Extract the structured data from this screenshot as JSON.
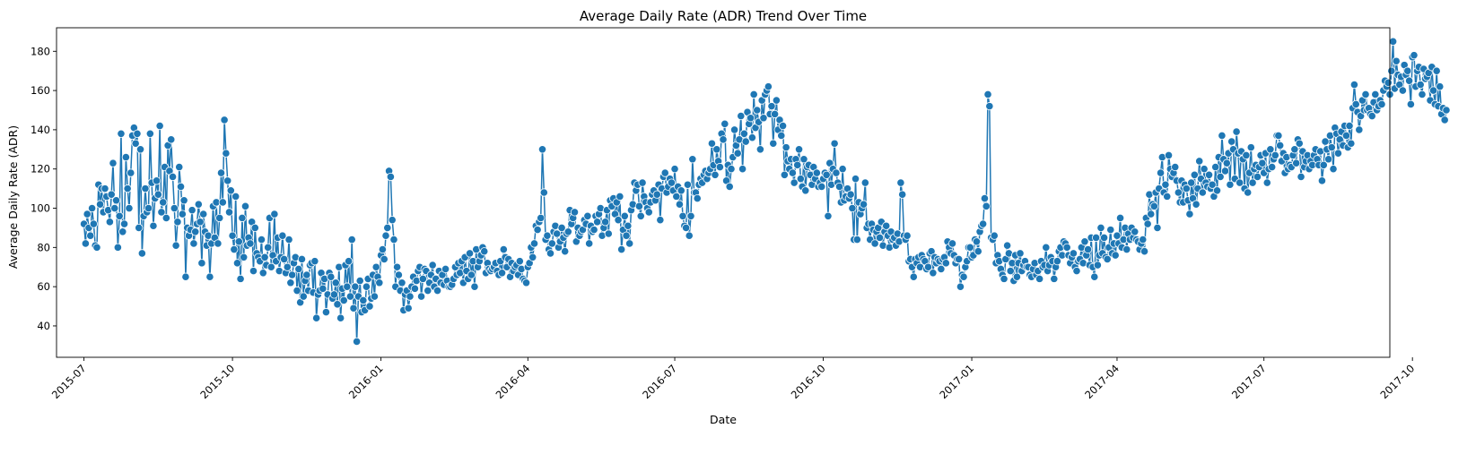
{
  "chart_data": {
    "type": "line",
    "title": "Average Daily Rate (ADR) Trend Over Time",
    "xlabel": "Date",
    "ylabel": "Average Daily Rate (ADR)",
    "xlim": [
      "2015-06-14",
      "2017-09-17"
    ],
    "ylim": [
      24,
      192
    ],
    "x_ticks": [
      "2015-07-01",
      "2015-10-01",
      "2016-01-01",
      "2016-04-01",
      "2016-07-01",
      "2016-10-01",
      "2017-01-01",
      "2017-04-01",
      "2017-07-01",
      "2017-10-01"
    ],
    "x_tick_labels": [
      "2015-07",
      "2015-10",
      "2016-01",
      "2016-04",
      "2016-07",
      "2016-10",
      "2017-01",
      "2017-04",
      "2017-07",
      "2017-10"
    ],
    "y_ticks": [
      40,
      60,
      80,
      100,
      120,
      140,
      160,
      180
    ],
    "marker": "circle",
    "grid": false,
    "series": [
      {
        "color": "#1f77b4",
        "x_start": "2015-07-01",
        "step_days": 1,
        "values": [
          92,
          82,
          97,
          90,
          86,
          100,
          92,
          81,
          80,
          112,
          102,
          110,
          98,
          110,
          106,
          99,
          93,
          107,
          123,
          100,
          104,
          80,
          96,
          138,
          88,
          92,
          126,
          110,
          100,
          118,
          137,
          141,
          133,
          138,
          90,
          130,
          77,
          96,
          110,
          98,
          100,
          138,
          113,
          91,
          105,
          114,
          107,
          142,
          98,
          103,
          121,
          95,
          132,
          119,
          135,
          116,
          100,
          81,
          93,
          121,
          111,
          97,
          104,
          65,
          90,
          86,
          89,
          99,
          82,
          88,
          92,
          102,
          93,
          72,
          97,
          88,
          81,
          86,
          65,
          82,
          101,
          85,
          103,
          82,
          95,
          118,
          103,
          145,
          128,
          114,
          98,
          109,
          86,
          79,
          106,
          72,
          83,
          64,
          95,
          75,
          101,
          81,
          85,
          82,
          93,
          68,
          90,
          77,
          75,
          73,
          84,
          67,
          75,
          71,
          80,
          95,
          70,
          76,
          97,
          73,
          85,
          68,
          75,
          86,
          74,
          67,
          70,
          84,
          62,
          66,
          72,
          75,
          58,
          69,
          52,
          74,
          55,
          63,
          66,
          58,
          71,
          72,
          57,
          73,
          44,
          56,
          58,
          67,
          59,
          64,
          47,
          56,
          67,
          65,
          54,
          56,
          62,
          51,
          70,
          44,
          59,
          53,
          71,
          60,
          73,
          55,
          84,
          49,
          60,
          32,
          55,
          63,
          47,
          53,
          48,
          60,
          64,
          50,
          54,
          66,
          55,
          70,
          65,
          62,
          76,
          79,
          74,
          86,
          90,
          119,
          116,
          94,
          84,
          60,
          70,
          66,
          58,
          62,
          48,
          56,
          58,
          49,
          55,
          60,
          65,
          59,
          63,
          68,
          70,
          55,
          64,
          69,
          68,
          58,
          62,
          66,
          71,
          60,
          64,
          58,
          68,
          62,
          66,
          61,
          69,
          63,
          60,
          60,
          61,
          64,
          70,
          66,
          72,
          67,
          73,
          62,
          75,
          68,
          64,
          77,
          66,
          73,
          60,
          79,
          70,
          73,
          76,
          80,
          78,
          67,
          72,
          69,
          68,
          69,
          70,
          72,
          68,
          66,
          73,
          67,
          79,
          75,
          70,
          74,
          65,
          72,
          68,
          70,
          71,
          66,
          73,
          69,
          64,
          63,
          62,
          70,
          72,
          80,
          75,
          82,
          91,
          89,
          93,
          95,
          130,
          108,
          84,
          86,
          79,
          77,
          82,
          88,
          91,
          87,
          80,
          83,
          90,
          85,
          78,
          87,
          88,
          99,
          92,
          95,
          98,
          83,
          90,
          86,
          88,
          89,
          94,
          92,
          96,
          82,
          91,
          88,
          89,
          96,
          93,
          97,
          100,
          86,
          90,
          93,
          99,
          87,
          104,
          101,
          105,
          97,
          103,
          94,
          106,
          79,
          89,
          96,
          86,
          91,
          82,
          99,
          102,
          113,
          109,
          112,
          101,
          96,
          113,
          106,
          103,
          100,
          98,
          103,
          107,
          109,
          104,
          107,
          112,
          94,
          110,
          116,
          118,
          108,
          111,
          115,
          113,
          109,
          120,
          106,
          111,
          102,
          109,
          96,
          91,
          90,
          112,
          86,
          96,
          125,
          108,
          108,
          105,
          112,
          115,
          113,
          117,
          119,
          115,
          118,
          120,
          133,
          122,
          117,
          130,
          124,
          121,
          138,
          135,
          143,
          114,
          122,
          111,
          120,
          126,
          140,
          132,
          128,
          135,
          147,
          120,
          138,
          134,
          149,
          143,
          146,
          136,
          158,
          141,
          150,
          144,
          130,
          155,
          146,
          158,
          160,
          162,
          148,
          152,
          133,
          148,
          155,
          140,
          145,
          137,
          142,
          117,
          131,
          124,
          120,
          125,
          118,
          113,
          125,
          122,
          130,
          115,
          111,
          125,
          109,
          121,
          122,
          117,
          112,
          121,
          115,
          118,
          111,
          113,
          111,
          115,
          118,
          117,
          96,
          123,
          112,
          120,
          133,
          118,
          113,
          111,
          103,
          120,
          104,
          106,
          110,
          105,
          107,
          100,
          84,
          115,
          84,
          103,
          97,
          100,
          102,
          113,
          90,
          92,
          84,
          92,
          89,
          82,
          88,
          90,
          85,
          93,
          81,
          88,
          91,
          86,
          80,
          88,
          84,
          85,
          81,
          87,
          83,
          113,
          107,
          86,
          84,
          86,
          73,
          74,
          70,
          65,
          74,
          72,
          75,
          70,
          76,
          74,
          73,
          69,
          70,
          77,
          78,
          67,
          75,
          72,
          74,
          73,
          69,
          74,
          75,
          72,
          83,
          80,
          77,
          82,
          76,
          72,
          74,
          74,
          60,
          66,
          65,
          70,
          73,
          80,
          80,
          75,
          76,
          84,
          83,
          78,
          88,
          91,
          92,
          105,
          101,
          158,
          152,
          85,
          84,
          86,
          72,
          76,
          73,
          69,
          66,
          64,
          74,
          81,
          77,
          68,
          72,
          63,
          76,
          65,
          72,
          77,
          68,
          71,
          73,
          70,
          70,
          66,
          65,
          69,
          72,
          66,
          68,
          64,
          73,
          70,
          71,
          80,
          68,
          71,
          75,
          73,
          64,
          70,
          73,
          78,
          80,
          76,
          83,
          82,
          80,
          76,
          72,
          75,
          77,
          70,
          68,
          73,
          74,
          80,
          72,
          83,
          76,
          79,
          71,
          85,
          70,
          65,
          85,
          71,
          76,
          90,
          77,
          85,
          75,
          74,
          80,
          89,
          77,
          82,
          76,
          86,
          82,
          95,
          80,
          84,
          90,
          79,
          87,
          84,
          90,
          85,
          88,
          84,
          83,
          79,
          82,
          84,
          78,
          95,
          92,
          107,
          97,
          102,
          101,
          108,
          90,
          110,
          118,
          126,
          108,
          112,
          106,
          127,
          120,
          116,
          118,
          121,
          114,
          108,
          103,
          114,
          103,
          112,
          110,
          104,
          97,
          113,
          105,
          117,
          102,
          110,
          124,
          115,
          108,
          120,
          113,
          111,
          117,
          110,
          112,
          106,
          121,
          109,
          126,
          116,
          137,
          125,
          119,
          123,
          128,
          112,
          134,
          130,
          115,
          139,
          128,
          113,
          129,
          125,
          110,
          127,
          108,
          118,
          131,
          113,
          120,
          122,
          116,
          121,
          127,
          123,
          118,
          128,
          113,
          120,
          130,
          121,
          125,
          127,
          137,
          137,
          132,
          124,
          128,
          118,
          126,
          120,
          122,
          121,
          127,
          130,
          123,
          135,
          133,
          116,
          129,
          121,
          124,
          127,
          120,
          124,
          122,
          127,
          130,
          125,
          122,
          129,
          114,
          122,
          134,
          130,
          125,
          137,
          131,
          120,
          141,
          138,
          128,
          135,
          139,
          132,
          142,
          137,
          131,
          142,
          133,
          151,
          163,
          153,
          149,
          140,
          147,
          155,
          150,
          158,
          150,
          151,
          148,
          147,
          154,
          158,
          150,
          152,
          155,
          153,
          160,
          165,
          162,
          164,
          158,
          170,
          185,
          161,
          175,
          168,
          163,
          167,
          160,
          173,
          168,
          170,
          165,
          153,
          177,
          178,
          162,
          170,
          172,
          163,
          158,
          171,
          166,
          167,
          169,
          155,
          172,
          160,
          153,
          170,
          152,
          162,
          148,
          151,
          145,
          150
        ]
      }
    ]
  }
}
